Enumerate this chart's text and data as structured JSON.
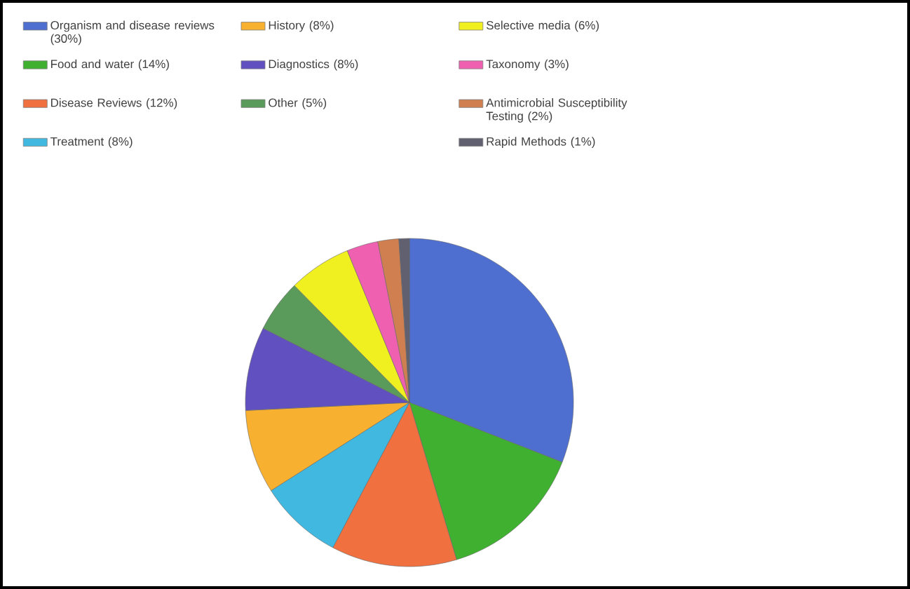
{
  "chart_data": {
    "type": "pie",
    "legend": "top",
    "categories": [
      "Organism and disease reviews (30%)",
      "Food and water (14%)",
      "Disease Reviews (12%)",
      "Treatment (8%)",
      "History (8%)",
      "Diagnostics (8%)",
      "Other (5%)",
      "Selective media (6%)",
      "Taxonomy (3%)",
      "Antimicrobial Susceptibility Testing (2%)",
      "Rapid Methods (1%)"
    ],
    "values": [
      30,
      14,
      12,
      8,
      8,
      8,
      5,
      6,
      3,
      2,
      1
    ],
    "colors": [
      "#4f6fd0",
      "#40b030",
      "#f07040",
      "#40b8e0",
      "#f8b030",
      "#6050c0",
      "#5a9a5a",
      "#f0f020",
      "#f060b0",
      "#d08050",
      "#606070"
    ]
  }
}
